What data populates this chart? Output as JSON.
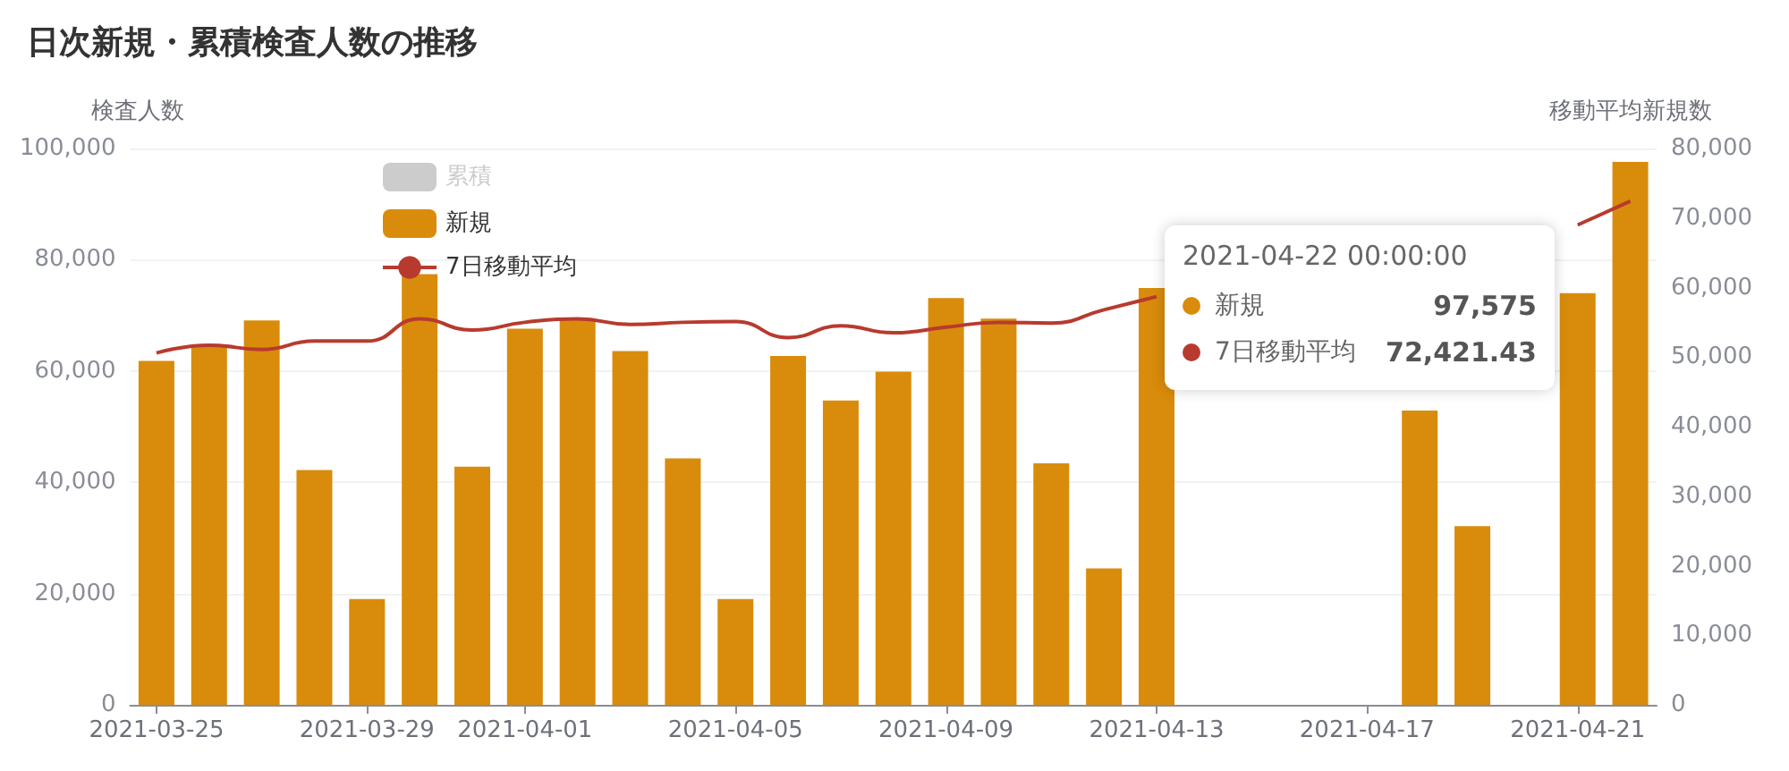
{
  "chart_data": {
    "type": "bar",
    "title": "日次新規・累積検査人数の推移",
    "ylabel": "検査人数",
    "y2label": "移動平均新規数",
    "categories": [
      "2021-03-25",
      null,
      null,
      null,
      "2021-03-29",
      null,
      null,
      "2021-04-01",
      null,
      null,
      null,
      "2021-04-05",
      null,
      null,
      null,
      "2021-04-09",
      null,
      null,
      null,
      "2021-04-13",
      null,
      null,
      null,
      "2021-04-17",
      null,
      null,
      null,
      "2021-04-21",
      null
    ],
    "series": [
      {
        "name": "累積",
        "color": "#cccccc",
        "values": [
          null,
          null,
          null,
          null,
          null,
          null,
          null,
          null,
          null,
          null,
          null,
          null,
          null,
          null,
          null,
          null,
          null,
          null,
          null,
          null,
          null,
          null,
          null,
          null,
          null,
          null,
          null,
          null,
          null
        ]
      },
      {
        "name": "新規",
        "color": "#d98c0b",
        "values": [
          61800,
          64800,
          69100,
          42200,
          19000,
          77400,
          42800,
          67600,
          69400,
          63600,
          44300,
          19000,
          62700,
          54700,
          59900,
          73100,
          69400,
          43400,
          24500,
          74900,
          null,
          null,
          null,
          null,
          52900,
          32100,
          null,
          74000,
          97575
        ]
      },
      {
        "name": "7日移動平均",
        "type": "line",
        "axis": "y2",
        "color": "#b83a2e",
        "marker": "none",
        "values": [
          50600,
          51700,
          51100,
          52300,
          52300,
          55500,
          53900,
          55000,
          55500,
          54700,
          55000,
          55100,
          52800,
          54500,
          53500,
          54300,
          55000,
          54900,
          56800,
          58700,
          null,
          null,
          null,
          null,
          null,
          null,
          null,
          69000,
          72421.43
        ]
      }
    ],
    "ylim": [
      0,
      100000
    ],
    "yticks": [
      0,
      {
        "value": 20000,
        "label": "20,000"
      },
      {
        "value": 40000,
        "label": "40,000"
      },
      {
        "value": 60000,
        "label": "60,000"
      },
      {
        "value": 80000,
        "label": "80,000"
      },
      {
        "value": 100000,
        "label": "100,000"
      }
    ],
    "y2lim": [
      0,
      80000
    ],
    "y2ticks": [
      0,
      {
        "value": 10000,
        "label": "10,000"
      },
      {
        "value": 20000,
        "label": "20,000"
      },
      {
        "value": 30000,
        "label": "30,000"
      },
      {
        "value": 40000,
        "label": "40,000"
      },
      {
        "value": 50000,
        "label": "50,000"
      },
      {
        "value": 60000,
        "label": "60,000"
      },
      {
        "value": 70000,
        "label": "70,000"
      },
      {
        "value": 80000,
        "label": "80,000"
      }
    ],
    "grid": "y",
    "legend": "top left",
    "annotations": [
      "2021-04-22 00:00:00",
      "新規",
      "97,575",
      "7日移動平均",
      "72,421.43"
    ]
  }
}
